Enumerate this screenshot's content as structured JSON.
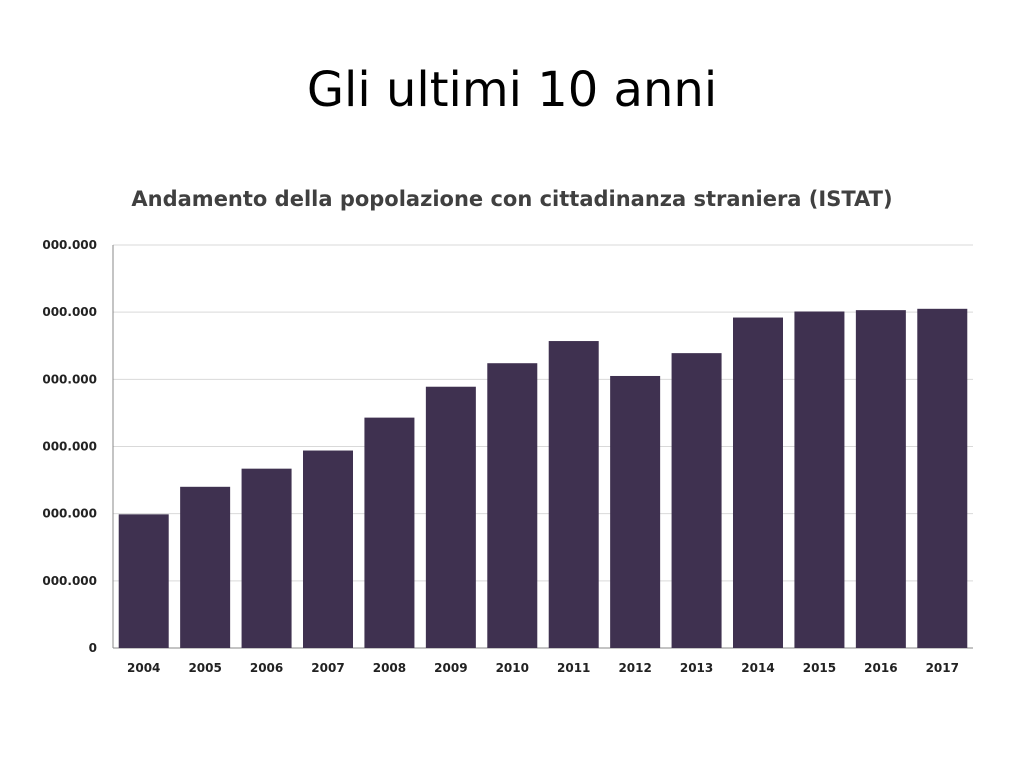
{
  "slide": {
    "title": "Gli ultimi 10 anni"
  },
  "chart_data": {
    "type": "bar",
    "title": "Andamento della popolazione con cittadinanza straniera (ISTAT)",
    "categories": [
      "2004",
      "2005",
      "2006",
      "2007",
      "2008",
      "2009",
      "2010",
      "2011",
      "2012",
      "2013",
      "2014",
      "2015",
      "2016",
      "2017"
    ],
    "values": [
      1990000,
      2400000,
      2670000,
      2940000,
      3430000,
      3890000,
      4240000,
      4570000,
      4050000,
      4390000,
      4920000,
      5010000,
      5030000,
      5050000
    ],
    "ylim": [
      0,
      6000000
    ],
    "ytick_labels": [
      "0",
      "000.000",
      "000.000",
      "000.000",
      "000.000",
      "000.000",
      "000.000"
    ],
    "grid": true,
    "bar_color": "#3f3150",
    "xlabel": "",
    "ylabel": ""
  }
}
